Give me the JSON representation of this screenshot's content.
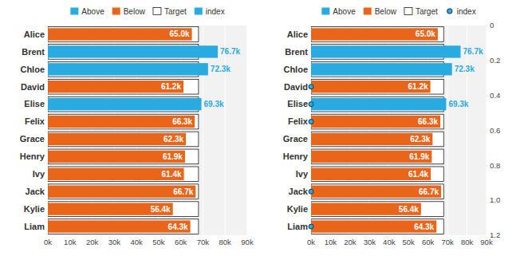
{
  "chart_data": [
    {
      "type": "bar",
      "orientation": "horizontal",
      "categories": [
        "Alice",
        "Brent",
        "Chloe",
        "David",
        "Elise",
        "Felix",
        "Grace",
        "Henry",
        "Ivy",
        "Jack",
        "Kylie",
        "Liam"
      ],
      "series": [
        {
          "name": "Above",
          "color": "#29ABE2",
          "values": [
            null,
            76700,
            72300,
            null,
            69300,
            null,
            null,
            null,
            null,
            null,
            null,
            null
          ],
          "value_labels": [
            null,
            "76.7k",
            "72.3k",
            null,
            "69.3k",
            null,
            null,
            null,
            null,
            null,
            null,
            null
          ]
        },
        {
          "name": "Below",
          "color": "#E8651A",
          "values": [
            65000,
            null,
            null,
            61200,
            null,
            66300,
            62300,
            61900,
            61400,
            66700,
            56400,
            64300
          ],
          "value_labels": [
            "65.0k",
            null,
            null,
            "61.2k",
            null,
            "66.3k",
            "62.3k",
            "61.9k",
            "61.4k",
            "66.7k",
            "56.4k",
            "64.3k"
          ]
        },
        {
          "name": "Target",
          "type": "target",
          "color": "#FFFFFF",
          "values": [
            68000,
            68000,
            68000,
            68000,
            68000,
            68000,
            68000,
            68000,
            68000,
            68000,
            68000,
            68000
          ]
        },
        {
          "name": "index",
          "type": "bar",
          "color": "#29ABE2",
          "values": [
            null,
            null,
            null,
            null,
            null,
            null,
            null,
            null,
            null,
            null,
            null,
            null
          ]
        }
      ],
      "xlim": [
        0,
        90000
      ],
      "xticks": [
        {
          "value": 0,
          "label": "0k"
        },
        {
          "value": 10000,
          "label": "10k"
        },
        {
          "value": 20000,
          "label": "20k"
        },
        {
          "value": 30000,
          "label": "30k"
        },
        {
          "value": 40000,
          "label": "40k"
        },
        {
          "value": 50000,
          "label": "50k"
        },
        {
          "value": 60000,
          "label": "60k"
        },
        {
          "value": 70000,
          "label": "70k"
        },
        {
          "value": 80000,
          "label": "80k"
        },
        {
          "value": 90000,
          "label": "90k"
        }
      ],
      "grid": true,
      "data_labels": true,
      "legend": "top"
    },
    {
      "type": "bar",
      "orientation": "horizontal",
      "categories": [
        "Alice",
        "Brent",
        "Chloe",
        "David",
        "Elise",
        "Felix",
        "Grace",
        "Henry",
        "Ivy",
        "Jack",
        "Kylie",
        "Liam"
      ],
      "series": [
        {
          "name": "Above",
          "color": "#29ABE2",
          "values": [
            null,
            76700,
            72300,
            null,
            69300,
            null,
            null,
            null,
            null,
            null,
            null,
            null
          ],
          "value_labels": [
            null,
            "76.7k",
            "72.3k",
            null,
            "69.3k",
            null,
            null,
            null,
            null,
            null,
            null,
            null
          ]
        },
        {
          "name": "Below",
          "color": "#E8651A",
          "values": [
            65000,
            null,
            null,
            61200,
            null,
            66300,
            62300,
            61900,
            61400,
            66700,
            56400,
            64300
          ],
          "value_labels": [
            "65.0k",
            null,
            null,
            "61.2k",
            null,
            "66.3k",
            "62.3k",
            "61.9k",
            "61.4k",
            "66.7k",
            "56.4k",
            "64.3k"
          ]
        },
        {
          "name": "Target",
          "type": "target",
          "color": "#FFFFFF",
          "values": [
            68000,
            68000,
            68000,
            68000,
            68000,
            68000,
            68000,
            68000,
            68000,
            68000,
            68000,
            68000
          ]
        },
        {
          "name": "index",
          "type": "scatter",
          "marker": "circle",
          "color": "#29ABE2",
          "values": [
            null,
            null,
            null,
            0,
            0,
            0,
            null,
            null,
            null,
            0,
            null,
            0
          ]
        }
      ],
      "xlim": [
        0,
        90000
      ],
      "xticks": [
        {
          "value": 0,
          "label": "0k"
        },
        {
          "value": 10000,
          "label": "10k"
        },
        {
          "value": 20000,
          "label": "20k"
        },
        {
          "value": 30000,
          "label": "30k"
        },
        {
          "value": 40000,
          "label": "40k"
        },
        {
          "value": 50000,
          "label": "50k"
        },
        {
          "value": 60000,
          "label": "60k"
        },
        {
          "value": 70000,
          "label": "70k"
        },
        {
          "value": 80000,
          "label": "80k"
        },
        {
          "value": 90000,
          "label": "90k"
        }
      ],
      "y2lim": [
        1.2,
        0
      ],
      "y2ticks": [
        0,
        0.2,
        0.4,
        0.6,
        0.8,
        {
          "value": 1.0,
          "label": "1.0"
        },
        1.2
      ],
      "grid": true,
      "data_labels": true,
      "legend": "top"
    }
  ]
}
